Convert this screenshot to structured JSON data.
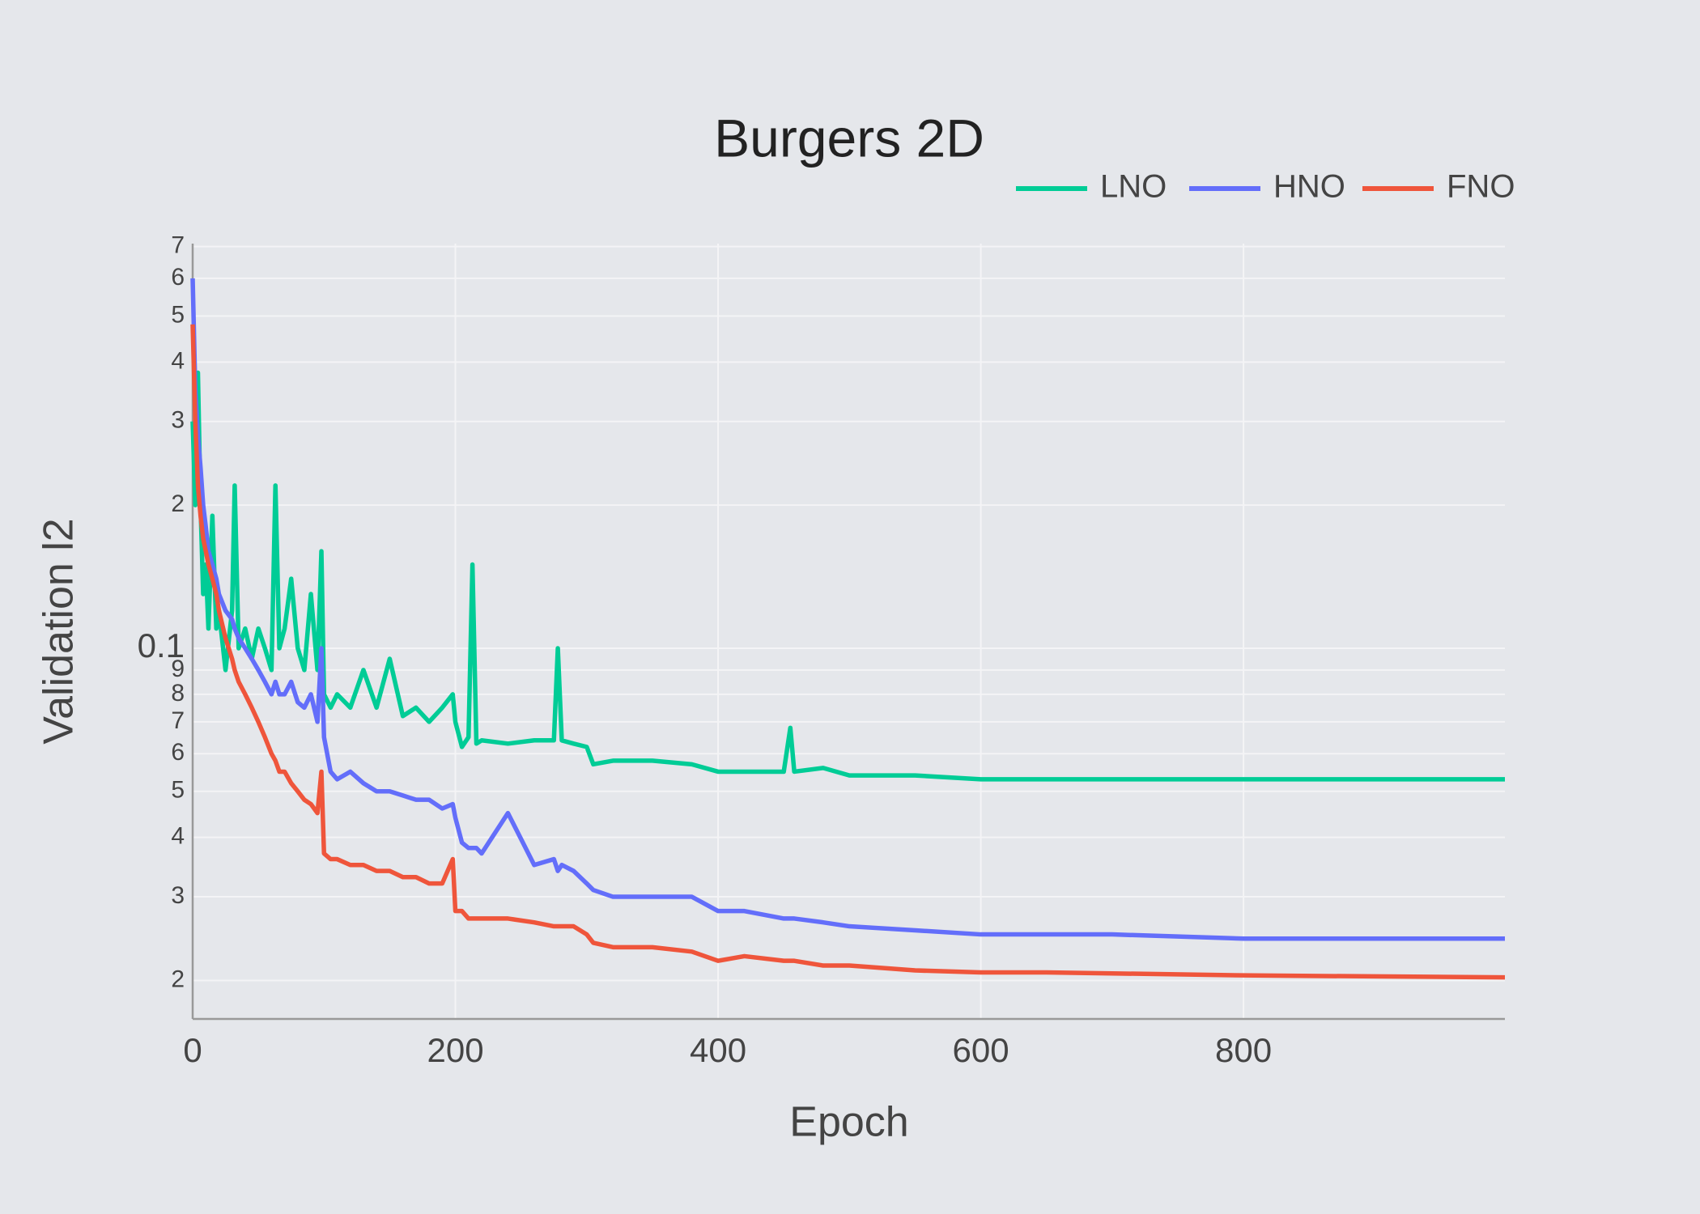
{
  "chart_data": {
    "type": "line",
    "title": "Burgers 2D",
    "x_label": "Epoch",
    "y_label": "Validation l2",
    "yscale": "log",
    "grid": true,
    "legend": "top-right",
    "xlim": [
      0,
      999
    ],
    "xticks": [
      0,
      200,
      400,
      600,
      800
    ],
    "ylim": [
      0.0166,
      0.71
    ],
    "yticks": [
      {
        "value": 0.02,
        "label": "2"
      },
      {
        "value": 0.03,
        "label": "3"
      },
      {
        "value": 0.04,
        "label": "4"
      },
      {
        "value": 0.05,
        "label": "5"
      },
      {
        "value": 0.06,
        "label": "6"
      },
      {
        "value": 0.07,
        "label": "7"
      },
      {
        "value": 0.08,
        "label": "8"
      },
      {
        "value": 0.09,
        "label": "9"
      },
      0.1,
      {
        "value": 0.2,
        "label": "2"
      },
      {
        "value": 0.3,
        "label": "3"
      },
      {
        "value": 0.4,
        "label": "4"
      },
      {
        "value": 0.5,
        "label": "5"
      },
      {
        "value": 0.6,
        "label": "6"
      },
      {
        "value": 0.7,
        "label": "7"
      }
    ],
    "x": [
      0,
      2,
      4,
      6,
      8,
      10,
      12,
      15,
      18,
      20,
      25,
      30,
      32,
      35,
      40,
      45,
      50,
      55,
      60,
      63,
      66,
      70,
      75,
      80,
      85,
      90,
      95,
      98,
      100,
      105,
      110,
      120,
      130,
      140,
      150,
      160,
      170,
      180,
      190,
      198,
      200,
      205,
      210,
      213,
      216,
      220,
      240,
      260,
      275,
      278,
      281,
      290,
      300,
      305,
      320,
      350,
      380,
      400,
      420,
      450,
      455,
      458,
      480,
      500,
      550,
      600,
      650,
      700,
      800,
      900,
      999
    ],
    "series": [
      {
        "name": "LNO",
        "color": "#00cc96",
        "values": [
          0.3,
          0.2,
          0.38,
          0.2,
          0.13,
          0.15,
          0.11,
          0.19,
          0.11,
          0.12,
          0.09,
          0.12,
          0.22,
          0.1,
          0.11,
          0.095,
          0.11,
          0.1,
          0.09,
          0.22,
          0.1,
          0.11,
          0.14,
          0.1,
          0.09,
          0.13,
          0.09,
          0.16,
          0.08,
          0.075,
          0.08,
          0.075,
          0.09,
          0.075,
          0.095,
          0.072,
          0.075,
          0.07,
          0.075,
          0.08,
          0.07,
          0.062,
          0.065,
          0.15,
          0.063,
          0.064,
          0.063,
          0.064,
          0.064,
          0.1,
          0.064,
          0.063,
          0.062,
          0.057,
          0.058,
          0.058,
          0.057,
          0.055,
          0.055,
          0.055,
          0.068,
          0.055,
          0.056,
          0.054,
          0.054,
          0.053,
          0.053,
          0.053,
          0.053,
          0.053,
          0.053
        ]
      },
      {
        "name": "HNO",
        "color": "#636efa",
        "values": [
          0.6,
          0.35,
          0.28,
          0.24,
          0.2,
          0.18,
          0.16,
          0.15,
          0.14,
          0.13,
          0.12,
          0.115,
          0.11,
          0.105,
          0.1,
          0.095,
          0.09,
          0.085,
          0.08,
          0.085,
          0.08,
          0.08,
          0.085,
          0.077,
          0.075,
          0.08,
          0.07,
          0.1,
          0.065,
          0.055,
          0.053,
          0.055,
          0.052,
          0.05,
          0.05,
          0.049,
          0.048,
          0.048,
          0.046,
          0.047,
          0.044,
          0.039,
          0.038,
          0.038,
          0.038,
          0.037,
          0.045,
          0.035,
          0.036,
          0.034,
          0.035,
          0.034,
          0.032,
          0.031,
          0.03,
          0.03,
          0.03,
          0.028,
          0.028,
          0.027,
          0.027,
          0.027,
          0.0265,
          0.026,
          0.0255,
          0.025,
          0.025,
          0.025,
          0.0245,
          0.0245,
          0.0245
        ]
      },
      {
        "name": "FNO",
        "color": "#ef553b",
        "values": [
          0.48,
          0.3,
          0.22,
          0.19,
          0.17,
          0.16,
          0.15,
          0.14,
          0.13,
          0.12,
          0.105,
          0.095,
          0.09,
          0.085,
          0.08,
          0.075,
          0.07,
          0.065,
          0.06,
          0.058,
          0.055,
          0.055,
          0.052,
          0.05,
          0.048,
          0.047,
          0.045,
          0.055,
          0.037,
          0.036,
          0.036,
          0.035,
          0.035,
          0.034,
          0.034,
          0.033,
          0.033,
          0.032,
          0.032,
          0.036,
          0.028,
          0.028,
          0.027,
          0.027,
          0.027,
          0.027,
          0.027,
          0.0265,
          0.026,
          0.026,
          0.026,
          0.026,
          0.025,
          0.024,
          0.0235,
          0.0235,
          0.023,
          0.022,
          0.0225,
          0.022,
          0.022,
          0.022,
          0.0215,
          0.0215,
          0.021,
          0.0208,
          0.0208,
          0.0207,
          0.0205,
          0.0204,
          0.0203
        ]
      }
    ]
  }
}
